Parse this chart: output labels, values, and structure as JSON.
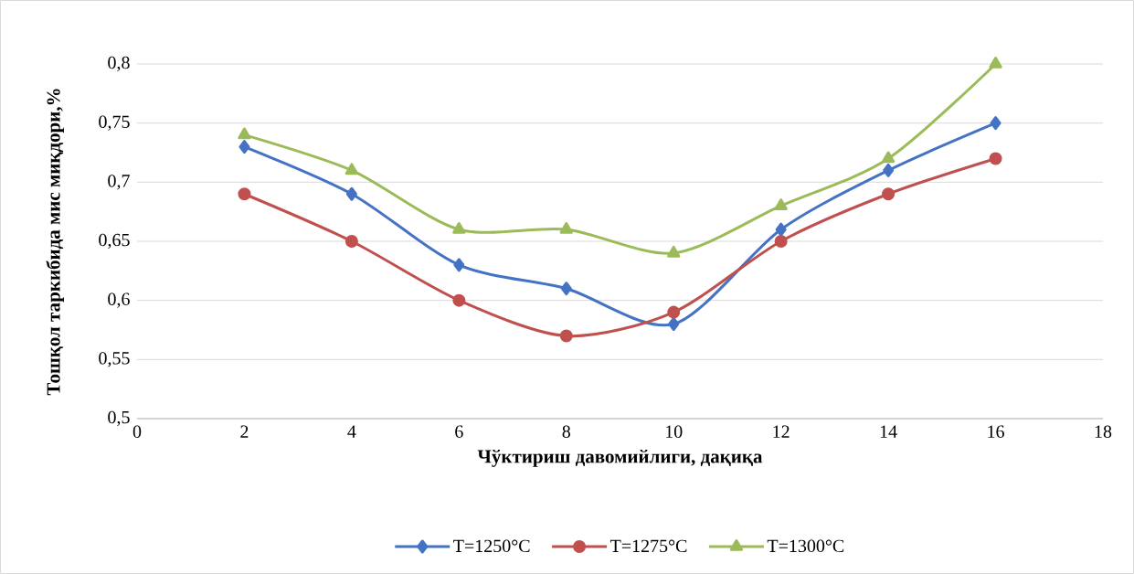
{
  "chart_data": {
    "type": "line",
    "xlabel": "Чўктириш давомийлиги, дақиқа",
    "ylabel": "Тошқол таркибида мис миқдори,%",
    "x": [
      2,
      4,
      6,
      8,
      10,
      12,
      14,
      16
    ],
    "series": [
      {
        "name": "T=1250°C",
        "color": "#4472c4",
        "marker": "diamond",
        "values": [
          0.73,
          0.69,
          0.63,
          0.61,
          0.58,
          0.66,
          0.71,
          0.75
        ]
      },
      {
        "name": "T=1275°C",
        "color": "#c0504d",
        "marker": "circle",
        "values": [
          0.69,
          0.65,
          0.6,
          0.57,
          0.59,
          0.65,
          0.69,
          0.72
        ]
      },
      {
        "name": "T=1300°C",
        "color": "#9bbb59",
        "marker": "triangle",
        "values": [
          0.74,
          0.71,
          0.66,
          0.66,
          0.64,
          0.68,
          0.72,
          0.8
        ]
      }
    ],
    "xlim": [
      0,
      18
    ],
    "xticks": [
      0,
      2,
      4,
      6,
      8,
      10,
      12,
      14,
      16,
      18
    ],
    "ylim": [
      0.5,
      0.8
    ],
    "yticks": [
      {
        "value": 0.5,
        "label": "0,5"
      },
      {
        "value": 0.55,
        "label": "0,55"
      },
      {
        "value": 0.6,
        "label": "0,6"
      },
      {
        "value": 0.65,
        "label": "0,65"
      },
      {
        "value": 0.7,
        "label": "0,7"
      },
      {
        "value": 0.75,
        "label": "0,75"
      },
      {
        "value": 0.8,
        "label": "0,8"
      }
    ],
    "grid": "y",
    "legend": "bottom",
    "line_style": "solid"
  }
}
